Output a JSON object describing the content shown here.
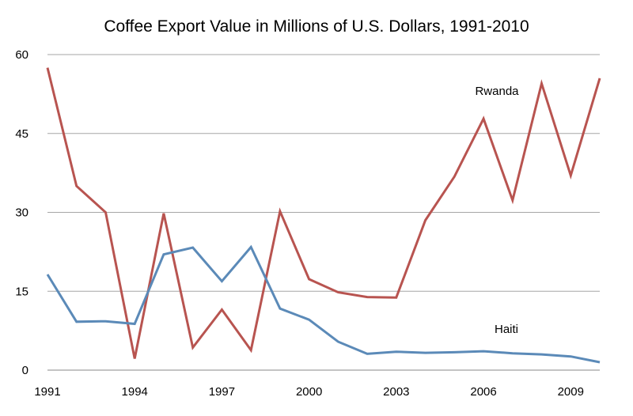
{
  "chart_data": {
    "type": "line",
    "title": "Coffee Export Value in Millions of U.S. Dollars, 1991-2010",
    "xlabel": "",
    "ylabel": "",
    "x": [
      1991,
      1992,
      1993,
      1994,
      1995,
      1996,
      1997,
      1998,
      1999,
      2000,
      2001,
      2002,
      2003,
      2004,
      2005,
      2006,
      2007,
      2008,
      2009,
      2010
    ],
    "x_tick_labels": [
      "1991",
      "1994",
      "1997",
      "2000",
      "2003",
      "2006",
      "2009"
    ],
    "y_tick_labels": [
      "0",
      "15",
      "30",
      "45",
      "60"
    ],
    "ylim": [
      0,
      60
    ],
    "grid": true,
    "series": [
      {
        "name": "Rwanda",
        "color": "#b85450",
        "values": [
          57.5,
          35.0,
          30.0,
          2.2,
          29.8,
          4.3,
          11.5,
          3.8,
          30.2,
          17.3,
          14.8,
          13.9,
          13.8,
          28.5,
          36.8,
          47.8,
          32.3,
          54.5,
          37.0,
          55.5
        ]
      },
      {
        "name": "Haiti",
        "color": "#5b8ab8",
        "values": [
          18.2,
          9.2,
          9.3,
          8.8,
          22.0,
          23.3,
          16.9,
          23.4,
          11.7,
          9.6,
          5.4,
          3.1,
          3.5,
          3.3,
          3.4,
          3.6,
          3.2,
          3.0,
          2.6,
          1.5
        ]
      }
    ]
  }
}
